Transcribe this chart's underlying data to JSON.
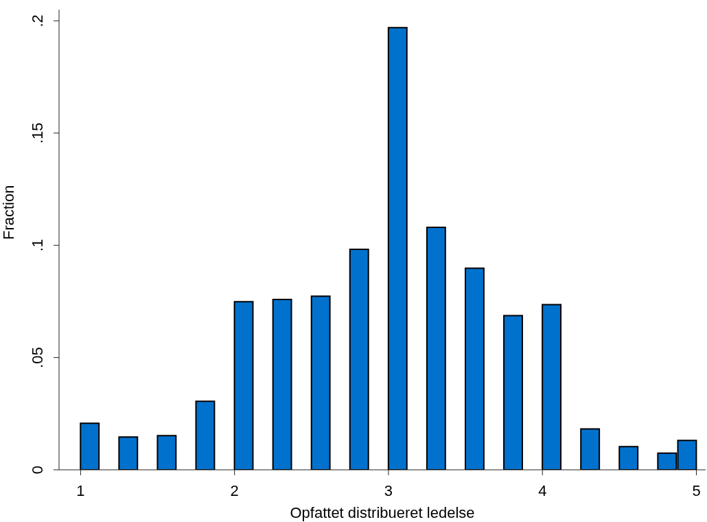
{
  "chart_data": {
    "type": "bar",
    "xlabel": "Opfattet distribueret ledelse",
    "ylabel": "Fraction",
    "x": [
      1.06,
      1.31,
      1.56,
      1.81,
      2.06,
      2.31,
      2.56,
      2.81,
      3.06,
      3.31,
      3.56,
      3.81,
      4.06,
      4.31,
      4.56,
      4.81,
      4.94
    ],
    "values": [
      0.0207,
      0.0146,
      0.0152,
      0.0305,
      0.0749,
      0.0759,
      0.0773,
      0.0982,
      0.197,
      0.108,
      0.0898,
      0.0687,
      0.0736,
      0.0182,
      0.0103,
      0.0074,
      0.0131
    ],
    "color": "#0072cd",
    "xlim": [
      0.86,
      5.06
    ],
    "xticks": [
      1,
      2,
      3,
      4,
      5
    ],
    "ylim": [
      0,
      0.205
    ],
    "yticks": [
      0,
      {
        "value": 0.05,
        "label": ".05"
      },
      {
        "value": 0.1,
        "label": ".1"
      },
      {
        "value": 0.15,
        "label": ".15"
      },
      {
        "value": 0.2,
        "label": ".2"
      }
    ],
    "grid": false,
    "legend": false
  }
}
